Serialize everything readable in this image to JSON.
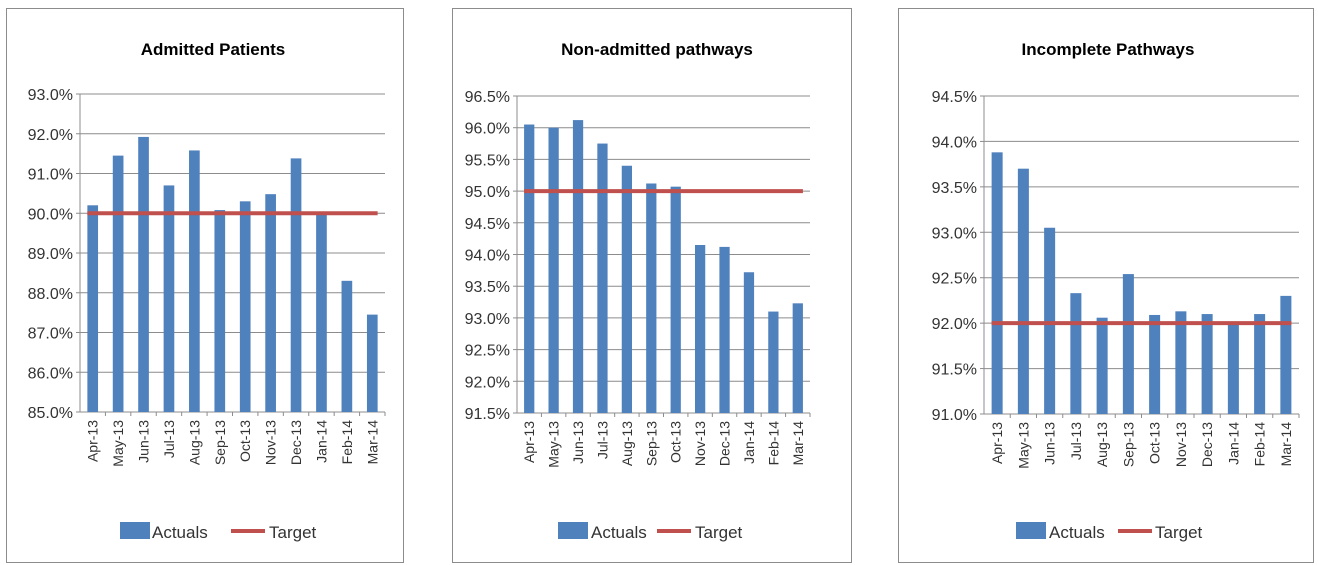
{
  "chart_data": [
    {
      "type": "bar",
      "title": "Admitted Patients",
      "categories": [
        "Apr-13",
        "May-13",
        "Jun-13",
        "Jul-13",
        "Aug-13",
        "Sep-13",
        "Oct-13",
        "Nov-13",
        "Dec-13",
        "Jan-14",
        "Feb-14",
        "Mar-14"
      ],
      "series": [
        {
          "name": "Actuals",
          "type": "bar",
          "values": [
            90.2,
            91.45,
            91.92,
            90.7,
            91.58,
            90.08,
            90.3,
            90.48,
            91.38,
            89.98,
            88.3,
            87.45
          ]
        },
        {
          "name": "Target",
          "type": "line",
          "values": [
            90.0,
            90.0,
            90.0,
            90.0,
            90.0,
            90.0,
            90.0,
            90.0,
            90.0,
            90.0,
            90.0,
            90.0
          ]
        }
      ],
      "ylim": [
        85.0,
        93.0
      ],
      "yticks": [
        85.0,
        86.0,
        87.0,
        88.0,
        89.0,
        90.0,
        91.0,
        92.0,
        93.0
      ],
      "ytick_labels": [
        "85.0%",
        "86.0%",
        "87.0%",
        "88.0%",
        "89.0%",
        "90.0%",
        "91.0%",
        "92.0%",
        "93.0%"
      ],
      "grid": true,
      "legend_position": "bottom"
    },
    {
      "type": "bar",
      "title": "Non-admitted pathways",
      "categories": [
        "Apr-13",
        "May-13",
        "Jun-13",
        "Jul-13",
        "Aug-13",
        "Sep-13",
        "Oct-13",
        "Nov-13",
        "Dec-13",
        "Jan-14",
        "Feb-14",
        "Mar-14"
      ],
      "series": [
        {
          "name": "Actuals",
          "type": "bar",
          "values": [
            96.05,
            96.0,
            96.12,
            95.75,
            95.4,
            95.12,
            95.07,
            94.15,
            94.12,
            93.72,
            93.1,
            93.23
          ]
        },
        {
          "name": "Target",
          "type": "line",
          "values": [
            95.0,
            95.0,
            95.0,
            95.0,
            95.0,
            95.0,
            95.0,
            95.0,
            95.0,
            95.0,
            95.0,
            95.0
          ]
        }
      ],
      "ylim": [
        91.5,
        96.5
      ],
      "yticks": [
        91.5,
        92.0,
        92.5,
        93.0,
        93.5,
        94.0,
        94.5,
        95.0,
        95.5,
        96.0,
        96.5
      ],
      "ytick_labels": [
        "91.5%",
        "92.0%",
        "92.5%",
        "93.0%",
        "93.5%",
        "94.0%",
        "94.5%",
        "95.0%",
        "95.5%",
        "96.0%",
        "96.5%"
      ],
      "grid": true,
      "legend_position": "bottom"
    },
    {
      "type": "bar",
      "title": "Incomplete Pathways",
      "categories": [
        "Apr-13",
        "May-13",
        "Jun-13",
        "Jul-13",
        "Aug-13",
        "Sep-13",
        "Oct-13",
        "Nov-13",
        "Dec-13",
        "Jan-14",
        "Feb-14",
        "Mar-14"
      ],
      "series": [
        {
          "name": "Actuals",
          "type": "bar",
          "values": [
            93.88,
            93.7,
            93.05,
            92.33,
            92.06,
            92.54,
            92.09,
            92.13,
            92.1,
            91.98,
            92.1,
            92.3
          ]
        },
        {
          "name": "Target",
          "type": "line",
          "values": [
            92.0,
            92.0,
            92.0,
            92.0,
            92.0,
            92.0,
            92.0,
            92.0,
            92.0,
            92.0,
            92.0,
            92.0
          ]
        }
      ],
      "ylim": [
        91.0,
        94.5
      ],
      "yticks": [
        91.0,
        91.5,
        92.0,
        92.5,
        93.0,
        93.5,
        94.0,
        94.5
      ],
      "ytick_labels": [
        "91.0%",
        "91.5%",
        "92.0%",
        "92.5%",
        "93.0%",
        "93.5%",
        "94.0%",
        "94.5%"
      ],
      "grid": true,
      "legend_position": "bottom"
    }
  ],
  "colors": {
    "actuals": "#4f81bd",
    "target": "#c0504d",
    "grid": "#8c8c8c",
    "axis": "#8c8c8c"
  }
}
